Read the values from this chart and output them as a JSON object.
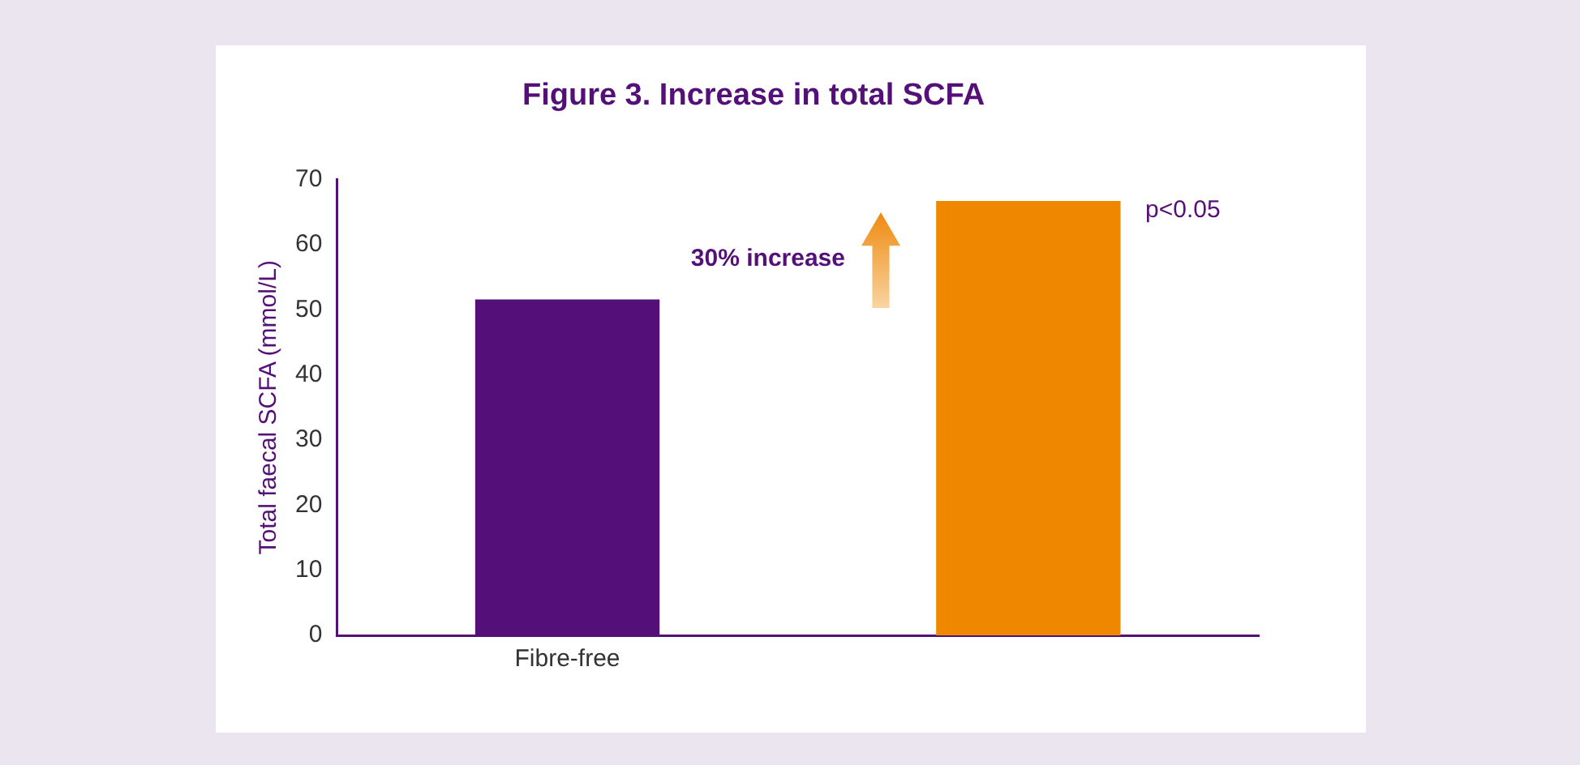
{
  "chart_data": {
    "type": "bar",
    "title": "Figure 3. Increase in total SCFA",
    "ylabel": "Total faecal SCFA (mmol/L)",
    "categories": [
      "Fibre-free",
      null
    ],
    "values": [
      51.6,
      66.7
    ],
    "colors": [
      "#541078",
      "#f08700"
    ],
    "ylim": [
      0,
      70
    ],
    "yticks": [
      0,
      10,
      20,
      30,
      40,
      50,
      60,
      70
    ],
    "grid": false,
    "legend": false,
    "annotations": [
      "30% increase",
      "p<0.05"
    ]
  }
}
